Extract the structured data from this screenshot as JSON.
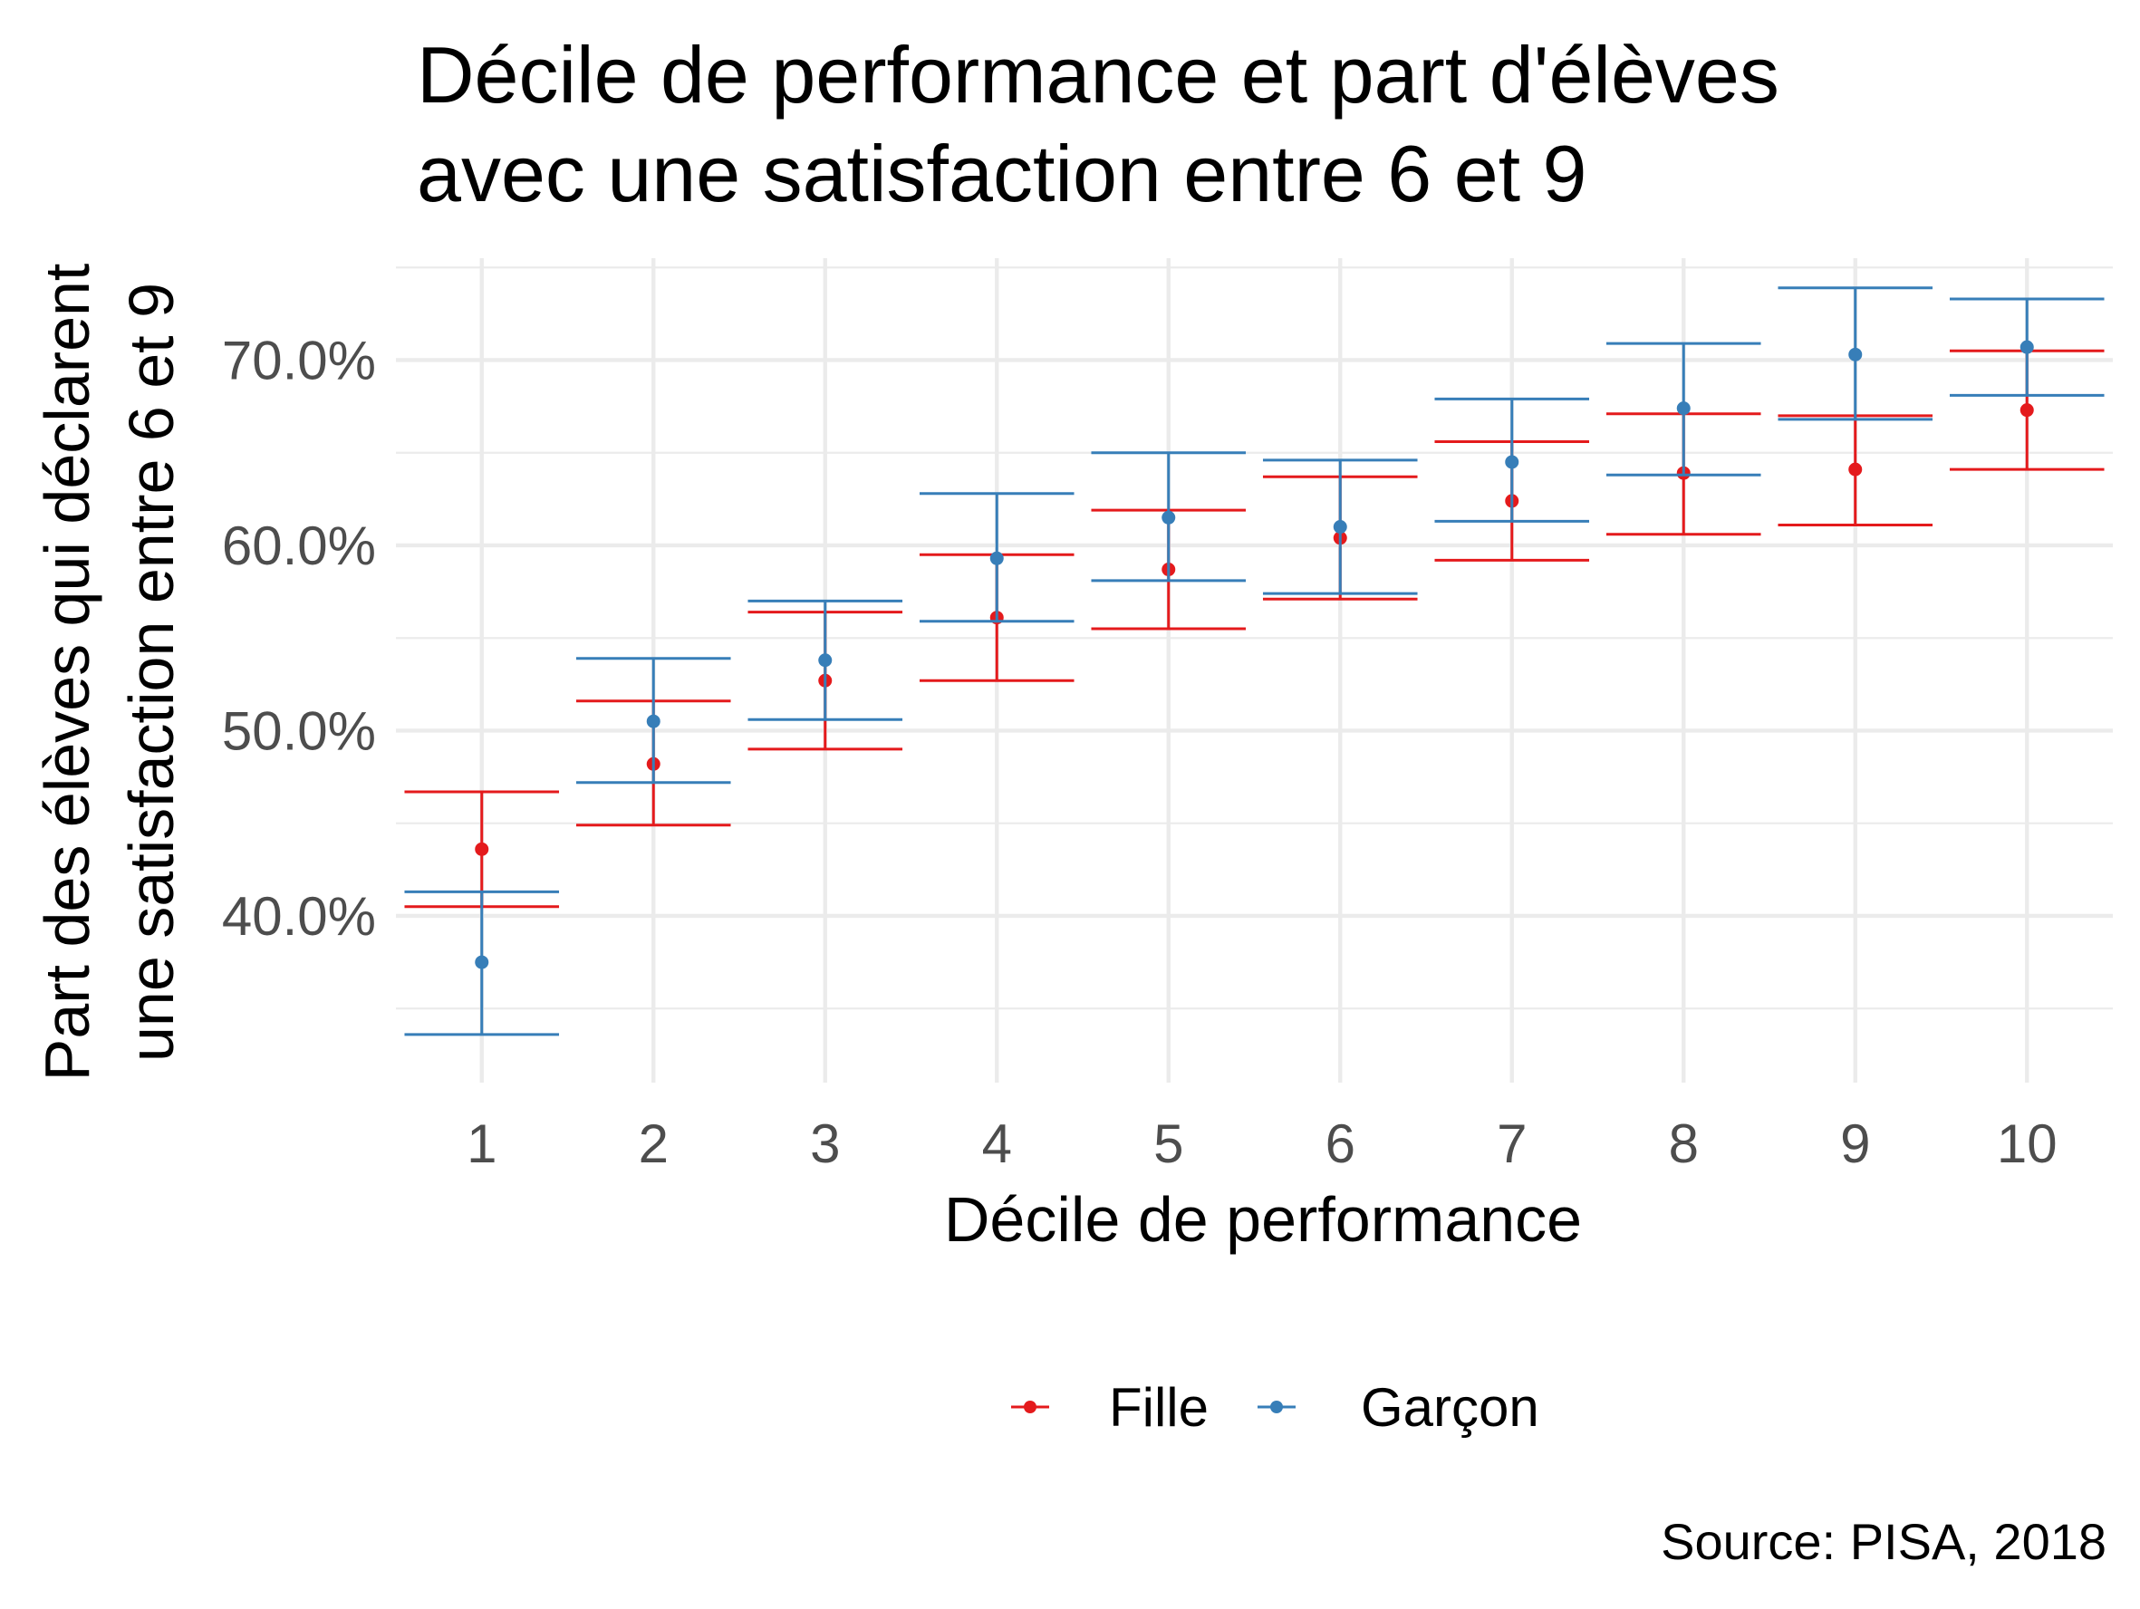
{
  "chart_data": {
    "type": "scatter",
    "subtype": "point-with-errorbars",
    "title_lines": [
      "Décile de performance et part d'élèves",
      "avec une satisfaction entre 6 et 9"
    ],
    "xlabel": "Décile de performance",
    "ylabel_lines": [
      "Part des élèves qui déclarent",
      "une satisfaction entre 6 et 9"
    ],
    "caption": "Source: PISA, 2018",
    "x": [
      1,
      2,
      3,
      4,
      5,
      6,
      7,
      8,
      9,
      10
    ],
    "x_tick_labels": [
      "1",
      "2",
      "3",
      "4",
      "5",
      "6",
      "7",
      "8",
      "9",
      "10"
    ],
    "y_ticks": [
      0.4,
      0.5,
      0.6,
      0.7
    ],
    "y_tick_labels": [
      "40.0%",
      "50.0%",
      "60.0%",
      "70.0%"
    ],
    "xlim": [
      0.5,
      10.5
    ],
    "ylim": [
      0.31,
      0.755
    ],
    "grid": true,
    "legend_position": "bottom",
    "series": [
      {
        "name": "Fille",
        "color": "#e41a1c",
        "values": [
          0.436,
          0.482,
          0.527,
          0.561,
          0.587,
          0.604,
          0.624,
          0.639,
          0.641,
          0.673
        ],
        "lower": [
          0.405,
          0.449,
          0.49,
          0.527,
          0.555,
          0.571,
          0.592,
          0.606,
          0.611,
          0.641
        ],
        "upper": [
          0.467,
          0.516,
          0.564,
          0.595,
          0.619,
          0.637,
          0.656,
          0.671,
          0.67,
          0.705
        ]
      },
      {
        "name": "Garçon",
        "color": "#377eb8",
        "values": [
          0.375,
          0.505,
          0.538,
          0.593,
          0.615,
          0.61,
          0.645,
          0.674,
          0.703,
          0.707
        ],
        "lower": [
          0.336,
          0.472,
          0.506,
          0.559,
          0.581,
          0.574,
          0.613,
          0.638,
          0.668,
          0.681
        ],
        "upper": [
          0.413,
          0.539,
          0.57,
          0.628,
          0.65,
          0.646,
          0.679,
          0.709,
          0.739,
          0.733
        ]
      }
    ]
  }
}
